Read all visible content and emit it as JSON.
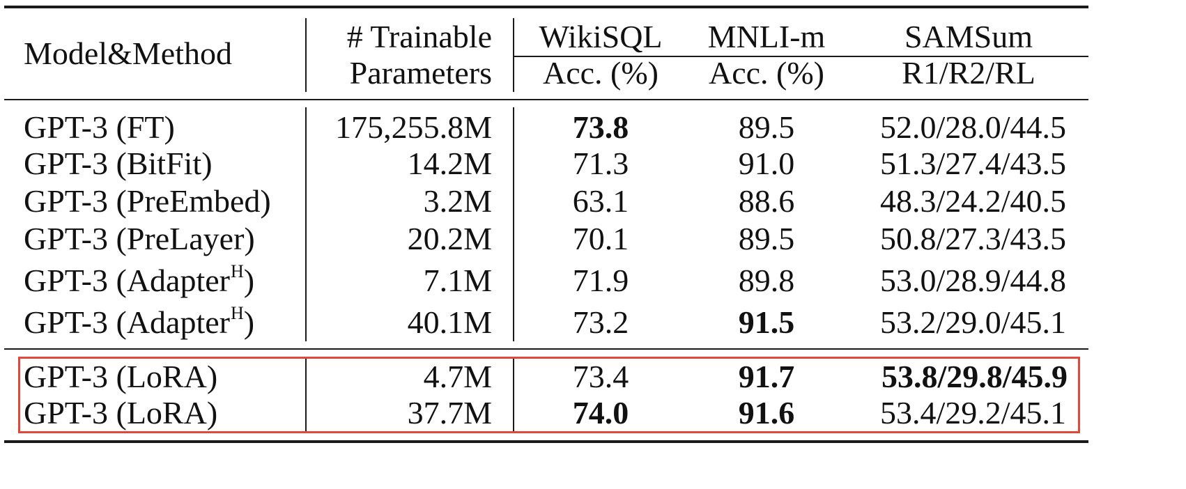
{
  "table": {
    "header": {
      "model_method": "Model&Method",
      "trainable_line1": "# Trainable",
      "trainable_line2": "Parameters",
      "wikisql": "WikiSQL",
      "wikisql_metric": "Acc. (%)",
      "mnli": "MNLI-m",
      "mnli_metric": "Acc. (%)",
      "samsum": "SAMSum",
      "samsum_metric": "R1/R2/RL"
    },
    "rows": [
      {
        "model": "GPT-3 (FT)",
        "sup": "",
        "params": "175,255.8M",
        "wikisql": "73.8",
        "mnli": "89.5",
        "samsum": "52.0/28.0/44.5"
      },
      {
        "model": "GPT-3 (BitFit)",
        "sup": "",
        "params": "14.2M",
        "wikisql": "71.3",
        "mnli": "91.0",
        "samsum": "51.3/27.4/43.5"
      },
      {
        "model": "GPT-3 (PreEmbed)",
        "sup": "",
        "params": "3.2M",
        "wikisql": "63.1",
        "mnli": "88.6",
        "samsum": "48.3/24.2/40.5"
      },
      {
        "model": "GPT-3 (PreLayer)",
        "sup": "",
        "params": "20.2M",
        "wikisql": "70.1",
        "mnli": "89.5",
        "samsum": "50.8/27.3/43.5"
      },
      {
        "model": "GPT-3 (Adapter",
        "sup": "H",
        "close": ")",
        "params": "7.1M",
        "wikisql": "71.9",
        "mnli": "89.8",
        "samsum": "53.0/28.9/44.8"
      },
      {
        "model": "GPT-3 (Adapter",
        "sup": "H",
        "close": ")",
        "params": "40.1M",
        "wikisql": "73.2",
        "mnli": "91.5",
        "samsum": "53.2/29.0/45.1"
      },
      {
        "model": "GPT-3 (LoRA)",
        "sup": "",
        "params": "4.7M",
        "wikisql": "73.4",
        "mnli": "91.7",
        "samsum": "53.8/29.8/45.9"
      },
      {
        "model": "GPT-3 (LoRA)",
        "sup": "",
        "params": "37.7M",
        "wikisql": "74.0",
        "mnli": "91.6",
        "samsum": "53.4/29.2/45.1"
      }
    ],
    "highlight_color": "#e0483a"
  }
}
